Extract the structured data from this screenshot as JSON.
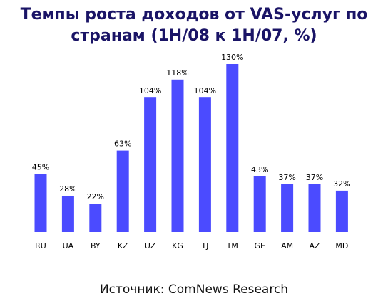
{
  "title": {
    "line1": "Темпы роста доходов от VAS-услуг по",
    "line2": "странам (1H/08 к 1H/07, %)"
  },
  "source": "Источник: ComNews Research",
  "colors": {
    "bar": "#4b4bff",
    "title": "#1a1466",
    "text": "#000000"
  },
  "chart_data": {
    "type": "bar",
    "title": "Темпы роста доходов от VAS-услуг по странам (1H/08 к 1H/07, %)",
    "categories": [
      "RU",
      "UA",
      "BY",
      "KZ",
      "UZ",
      "KG",
      "TJ",
      "TM",
      "GE",
      "AM",
      "AZ",
      "MD"
    ],
    "values": [
      45,
      28,
      22,
      63,
      104,
      118,
      104,
      130,
      43,
      37,
      37,
      32
    ],
    "labels": [
      "45%",
      "28%",
      "22%",
      "63%",
      "104%",
      "118%",
      "104%",
      "130%",
      "43%",
      "37%",
      "37%",
      "32%"
    ],
    "xlabel": "",
    "ylabel": "",
    "ylim": [
      0,
      130
    ],
    "grid": false,
    "legend": "none"
  }
}
